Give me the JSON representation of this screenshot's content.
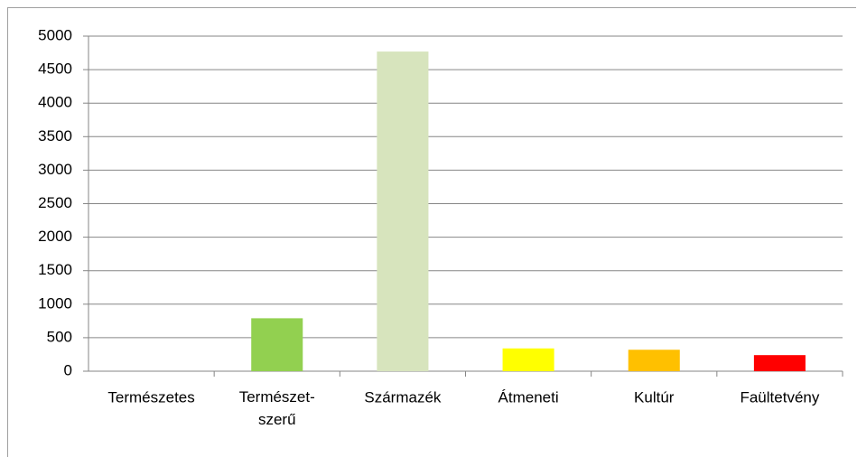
{
  "chart_data": {
    "type": "bar",
    "categories": [
      "Természetes",
      "Természet- szerű",
      "Származék",
      "Átmeneti",
      "Kultúr",
      "Faültetvény"
    ],
    "values": [
      0,
      790,
      4770,
      340,
      320,
      240
    ],
    "colors": [
      "#92d050",
      "#92d050",
      "#d7e4bd",
      "#ffff00",
      "#ffc000",
      "#ff0000"
    ],
    "ylim": [
      0,
      5000
    ],
    "yticks": [
      0,
      500,
      1000,
      1500,
      2000,
      2500,
      3000,
      3500,
      4000,
      4500,
      5000
    ],
    "grid": true
  }
}
